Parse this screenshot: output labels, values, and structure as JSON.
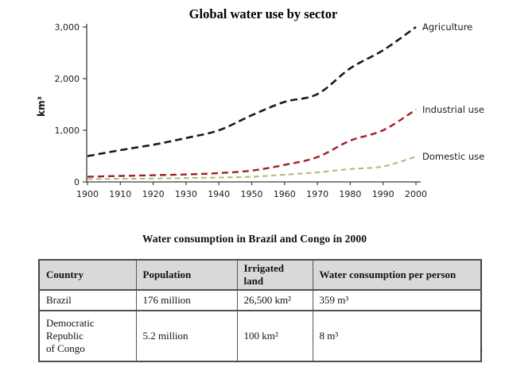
{
  "chart_data": {
    "type": "line",
    "title": "Global water use by sector",
    "ylabel": "km³",
    "xlabel": "",
    "x": [
      1900,
      1910,
      1920,
      1930,
      1940,
      1950,
      1960,
      1970,
      1980,
      1990,
      2000
    ],
    "ylim": [
      0,
      3000
    ],
    "yticks": [
      0,
      1000,
      2000,
      3000
    ],
    "ytick_labels": [
      "0",
      "1,000",
      "2,000",
      "3,000"
    ],
    "line_style": "dashed",
    "grid": false,
    "legend_position": "right-end-of-line",
    "series": [
      {
        "name": "Agriculture",
        "color": "#1a1a1a",
        "values": [
          500,
          615,
          720,
          850,
          1000,
          1290,
          1550,
          1700,
          2200,
          2550,
          3000
        ]
      },
      {
        "name": "Industrial use",
        "color": "#a21e26",
        "values": [
          100,
          115,
          130,
          145,
          170,
          220,
          330,
          480,
          800,
          1000,
          1400
        ]
      },
      {
        "name": "Domestic use",
        "color": "#abb97c",
        "values": [
          55,
          60,
          65,
          75,
          85,
          100,
          140,
          185,
          250,
          300,
          490
        ]
      }
    ]
  },
  "table": {
    "title": "Water consumption in Brazil and Congo in 2000",
    "headers": [
      "Country",
      "Population",
      "Irrigated land",
      "Water consumption per person"
    ],
    "rows": [
      [
        "Brazil",
        "176 million",
        "26,500 km²",
        "359 m³"
      ],
      [
        "Democratic\nRepublic\nof Congo",
        "5.2 million",
        "100 km²",
        "8 m³"
      ]
    ]
  },
  "misc": {
    "stray_dot": "."
  }
}
